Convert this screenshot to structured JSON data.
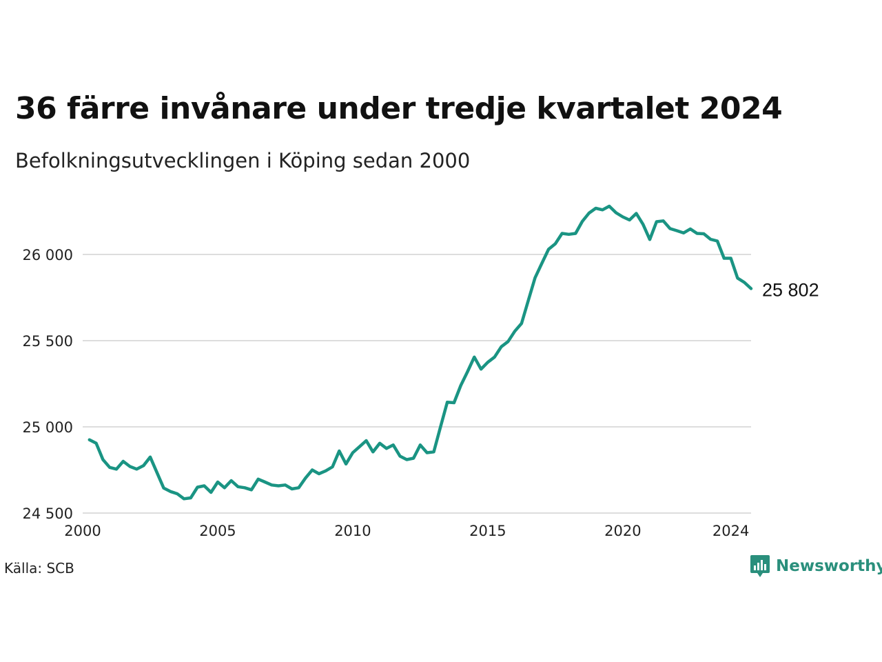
{
  "title": "36 färre invånare under tredje kvartalet 2024",
  "subtitle": "Befolkningsutvecklingen i Köping sedan 2000",
  "source": "Källa: SCB",
  "brand": "Newsworthy",
  "colors": {
    "line": "#1a9483",
    "grid": "#dddddd",
    "brand": "#2a8f7c"
  },
  "chart_data": {
    "type": "line",
    "title": "36 färre invånare under tredje kvartalet 2024",
    "subtitle": "Befolkningsutvecklingen i Köping sedan 2000",
    "xlim": [
      2000,
      2024.75
    ],
    "ylim": [
      24500,
      26300
    ],
    "x_ticks": [
      2000,
      2005,
      2010,
      2015,
      2020,
      2024
    ],
    "x_tick_labels": [
      "2000",
      "2005",
      "2010",
      "2015",
      "2020",
      "2024"
    ],
    "y_ticks": [
      24500,
      25000,
      25500,
      26000
    ],
    "y_tick_labels": [
      "24 500",
      "25 000",
      "25 500",
      "26 000"
    ],
    "grid": "horizontal",
    "end_label": "25 802",
    "series": [
      {
        "x": [
          2000.25,
          2000.5,
          2000.75,
          2001.0,
          2001.25,
          2001.5,
          2001.75,
          2002.0,
          2002.25,
          2002.5,
          2002.75,
          2003.0,
          2003.25,
          2003.5,
          2003.75,
          2004.0,
          2004.25,
          2004.5,
          2004.75,
          2005.0,
          2005.25,
          2005.5,
          2005.75,
          2006.0,
          2006.25,
          2006.5,
          2006.75,
          2007.0,
          2007.25,
          2007.5,
          2007.75,
          2008.0,
          2008.25,
          2008.5,
          2008.75,
          2009.0,
          2009.25,
          2009.5,
          2009.75,
          2010.0,
          2010.25,
          2010.5,
          2010.75,
          2011.0,
          2011.25,
          2011.5,
          2011.75,
          2012.0,
          2012.25,
          2012.5,
          2012.75,
          2013.0,
          2013.25,
          2013.5,
          2013.75,
          2014.0,
          2014.25,
          2014.5,
          2014.75,
          2015.0,
          2015.25,
          2015.5,
          2015.75,
          2016.0,
          2016.25,
          2016.5,
          2016.75,
          2017.0,
          2017.25,
          2017.5,
          2017.75,
          2018.0,
          2018.25,
          2018.5,
          2018.75,
          2019.0,
          2019.25,
          2019.5,
          2019.75,
          2020.0,
          2020.25,
          2020.5,
          2020.75,
          2021.0,
          2021.25,
          2021.5,
          2021.75,
          2022.0,
          2022.25,
          2022.5,
          2022.75,
          2023.0,
          2023.25,
          2023.5,
          2023.75,
          2024.0,
          2024.25,
          2024.5,
          2024.75
        ],
        "y": [
          24925,
          24905,
          24810,
          24765,
          24755,
          24800,
          24770,
          24755,
          24775,
          24825,
          24735,
          24645,
          24625,
          24612,
          24583,
          24588,
          24650,
          24658,
          24620,
          24680,
          24647,
          24688,
          24653,
          24647,
          24635,
          24697,
          24680,
          24663,
          24658,
          24663,
          24640,
          24647,
          24703,
          24750,
          24728,
          24745,
          24768,
          24860,
          24785,
          24850,
          24885,
          24920,
          24855,
          24905,
          24875,
          24895,
          24830,
          24810,
          24818,
          24895,
          24850,
          24855,
          25000,
          25143,
          25140,
          25240,
          25320,
          25405,
          25335,
          25375,
          25405,
          25465,
          25495,
          25555,
          25600,
          25733,
          25865,
          25948,
          26030,
          26062,
          26122,
          26117,
          26122,
          26192,
          26240,
          26268,
          26259,
          26280,
          26242,
          26218,
          26200,
          26238,
          26175,
          26087,
          26190,
          26195,
          26150,
          26138,
          26125,
          26148,
          26122,
          26120,
          26088,
          26078,
          25978,
          25978,
          25863,
          25838,
          25802
        ]
      }
    ]
  }
}
